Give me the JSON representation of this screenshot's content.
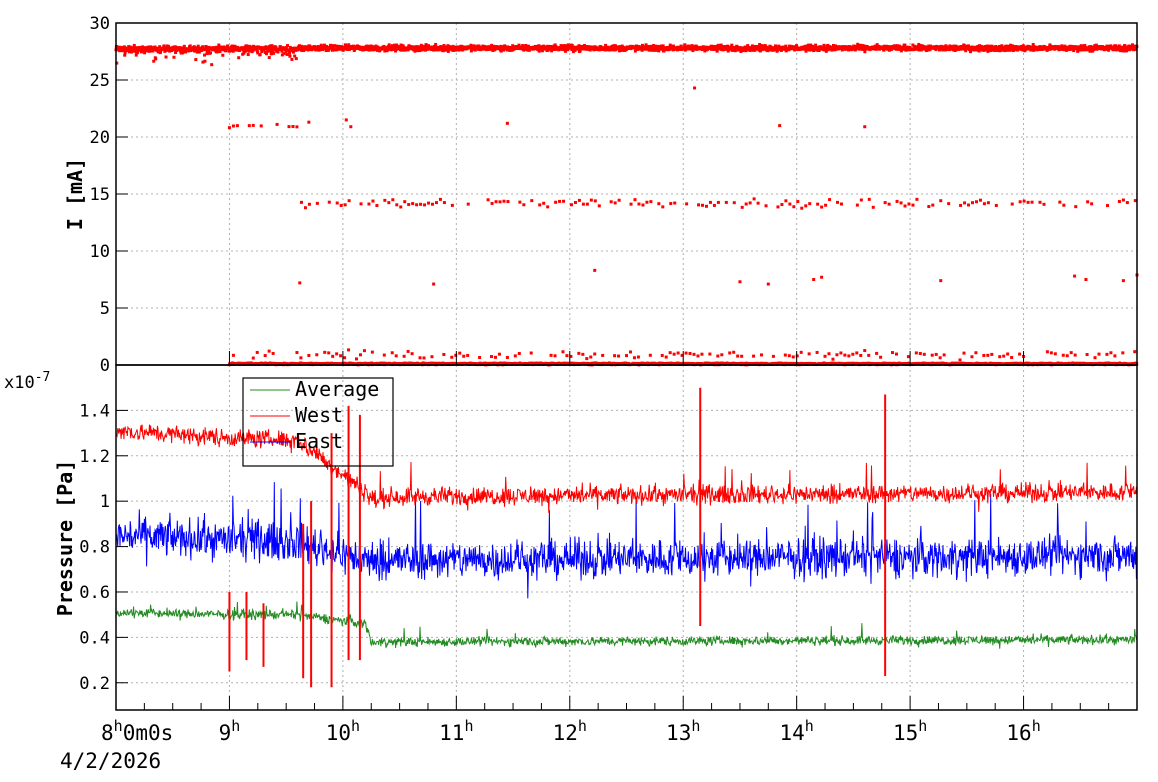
{
  "chart_data": [
    {
      "type": "scatter",
      "ylabel": "I [mA]",
      "xlim": [
        8.0,
        17.0
      ],
      "ylim": [
        0,
        30
      ],
      "yticks": [
        "0",
        "5",
        "10",
        "15",
        "20",
        "25",
        "30"
      ],
      "grid": true,
      "color": "#ff0000",
      "series": [
        {
          "level": 27.8,
          "spread": 0.35,
          "x_range": [
            8.0,
            17.0
          ],
          "density": "continuous band"
        },
        {
          "level": 21.0,
          "spread": 0.3,
          "x_range": [
            9.0,
            9.62
          ],
          "density": "sparse"
        },
        {
          "level": 14.2,
          "spread": 0.6,
          "x_range": [
            9.6,
            17.0
          ],
          "density": "sparse"
        },
        {
          "level": 0.1,
          "spread": 0.1,
          "x_range": [
            9.0,
            17.0
          ],
          "density": "continuous band"
        },
        {
          "level": 0.9,
          "spread": 0.5,
          "x_range": [
            9.0,
            17.0
          ],
          "density": "sparse"
        }
      ],
      "points": [
        [
          9.62,
          7.2
        ],
        [
          10.8,
          7.1
        ],
        [
          12.22,
          8.3
        ],
        [
          13.5,
          7.3
        ],
        [
          13.75,
          7.1
        ],
        [
          14.15,
          7.5
        ],
        [
          14.22,
          7.7
        ],
        [
          15.27,
          7.4
        ],
        [
          16.45,
          7.8
        ],
        [
          16.55,
          7.5
        ],
        [
          16.88,
          7.4
        ],
        [
          17.0,
          7.9
        ],
        [
          13.1,
          24.3
        ],
        [
          11.45,
          21.2
        ],
        [
          10.03,
          21.5
        ],
        [
          10.07,
          20.9
        ],
        [
          13.85,
          21.0
        ],
        [
          14.6,
          20.9
        ],
        [
          9.7,
          21.3
        ]
      ]
    },
    {
      "type": "line",
      "ylabel": "Pressure [Pa]",
      "exponent_label": "x10",
      "exponent_power": "-7",
      "xlim": [
        8.0,
        17.0
      ],
      "ylim": [
        0.08,
        1.6
      ],
      "yticks": [
        "0.2",
        "0.4",
        "0.6",
        "0.8",
        "1",
        "1.2",
        "1.4"
      ],
      "grid": true,
      "legend_position": "top-left",
      "series": [
        {
          "name": "Average",
          "color": "#228b22",
          "base": [
            [
              8.0,
              0.51
            ],
            [
              8.95,
              0.5
            ],
            [
              9.6,
              0.5
            ],
            [
              10.2,
              0.46
            ],
            [
              10.25,
              0.38
            ],
            [
              17.0,
              0.39
            ]
          ],
          "noise": 0.06
        },
        {
          "name": "West",
          "color": "#ff0000",
          "base": [
            [
              8.0,
              1.31
            ],
            [
              9.0,
              1.28
            ],
            [
              9.6,
              1.27
            ],
            [
              10.3,
              1.0
            ],
            [
              10.4,
              1.02
            ],
            [
              17.0,
              1.04
            ]
          ],
          "noise": 0.12
        },
        {
          "name": "East",
          "color": "#0000ff",
          "base": [
            [
              8.0,
              0.85
            ],
            [
              9.0,
              0.83
            ],
            [
              9.6,
              0.82
            ],
            [
              10.2,
              0.74
            ],
            [
              17.0,
              0.76
            ]
          ],
          "noise": 0.25
        }
      ],
      "spikes": [
        {
          "x": 9.0,
          "min": 0.25,
          "max": 0.6
        },
        {
          "x": 9.15,
          "min": 0.3,
          "max": 0.6
        },
        {
          "x": 9.3,
          "min": 0.27,
          "max": 0.55
        },
        {
          "x": 9.65,
          "min": 0.22,
          "max": 0.9
        },
        {
          "x": 9.72,
          "min": 0.18,
          "max": 1.0
        },
        {
          "x": 9.9,
          "min": 0.18,
          "max": 1.3
        },
        {
          "x": 10.05,
          "min": 0.3,
          "max": 1.42
        },
        {
          "x": 10.15,
          "min": 0.3,
          "max": 1.38
        },
        {
          "x": 13.15,
          "min": 0.45,
          "max": 1.5
        },
        {
          "x": 14.78,
          "min": 0.23,
          "max": 1.47
        }
      ]
    }
  ],
  "x_axis": {
    "ticks": [
      {
        "hour": "8",
        "suffix": "h",
        "extra": "0m0s"
      },
      {
        "hour": "9",
        "suffix": "h"
      },
      {
        "hour": "10",
        "suffix": "h"
      },
      {
        "hour": "11",
        "suffix": "h"
      },
      {
        "hour": "12",
        "suffix": "h"
      },
      {
        "hour": "13",
        "suffix": "h"
      },
      {
        "hour": "14",
        "suffix": "h"
      },
      {
        "hour": "15",
        "suffix": "h"
      },
      {
        "hour": "16",
        "suffix": "h"
      }
    ],
    "date_label": "4/2/2026"
  },
  "legend": {
    "items": [
      {
        "label": "Average",
        "color": "#228b22"
      },
      {
        "label": "West",
        "color": "#ff0000"
      },
      {
        "label": "East",
        "color": "#0000ff"
      }
    ]
  }
}
